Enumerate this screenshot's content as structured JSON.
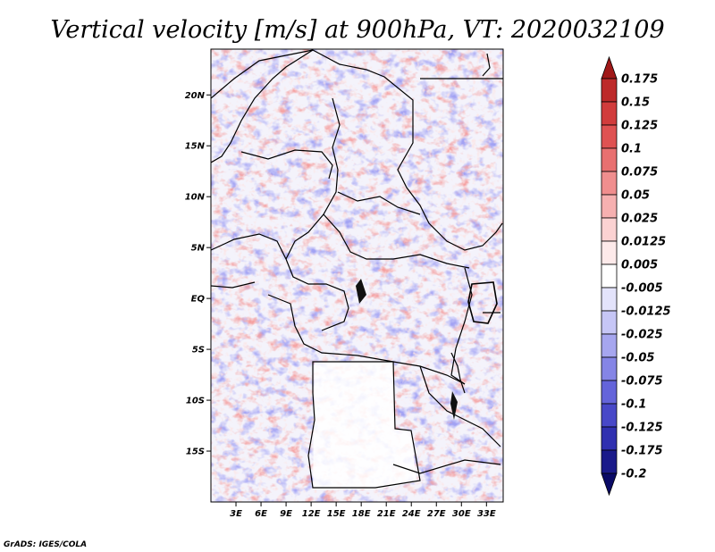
{
  "title": "Vertical velocity [m/s] at 900hPa, VT: 2020032109",
  "credit": "GrADS: IGES/COLA",
  "map": {
    "lat_labels": [
      "20N",
      "15N",
      "10N",
      "5N",
      "EQ",
      "5S",
      "10S",
      "15S"
    ],
    "lat_values": [
      20,
      15,
      10,
      5,
      0,
      -5,
      -10,
      -15
    ],
    "lon_labels": [
      "3E",
      "6E",
      "9E",
      "12E",
      "15E",
      "18E",
      "21E",
      "24E",
      "27E",
      "30E",
      "33E"
    ],
    "lon_values": [
      3,
      6,
      9,
      12,
      15,
      18,
      21,
      24,
      27,
      30,
      33
    ],
    "lon_range": [
      0,
      35
    ],
    "lat_range": [
      -20,
      24.5
    ]
  },
  "colorbar": {
    "labels": [
      "0.175",
      "0.15",
      "0.125",
      "0.1",
      "0.075",
      "0.05",
      "0.025",
      "0.0125",
      "0.005",
      "-0.005",
      "-0.0125",
      "-0.025",
      "-0.05",
      "-0.075",
      "-0.1",
      "-0.125",
      "-0.175",
      "-0.2"
    ],
    "colors": [
      "#a01818",
      "#bd2a2a",
      "#d13c3c",
      "#df5252",
      "#e87070",
      "#f08e8e",
      "#f6b0b0",
      "#fbd2d2",
      "#fdeaea",
      "#ffffff",
      "#e3e3fb",
      "#c6c6f6",
      "#a6a6ef",
      "#8585e6",
      "#6464da",
      "#4848c8",
      "#3030b0",
      "#1a1a8a",
      "#0a0a66"
    ]
  },
  "colors": {
    "red_field": "#e85a5a",
    "blue_field": "#5a5ae6",
    "border": "#000000"
  }
}
